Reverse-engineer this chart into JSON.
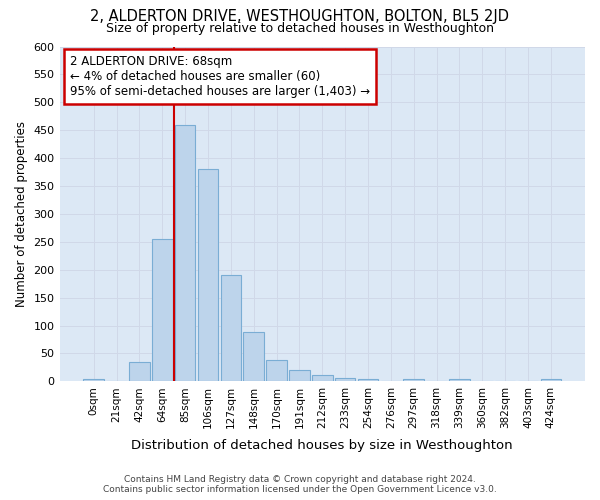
{
  "title": "2, ALDERTON DRIVE, WESTHOUGHTON, BOLTON, BL5 2JD",
  "subtitle": "Size of property relative to detached houses in Westhoughton",
  "xlabel": "Distribution of detached houses by size in Westhoughton",
  "ylabel": "Number of detached properties",
  "bar_labels": [
    "0sqm",
    "21sqm",
    "42sqm",
    "64sqm",
    "85sqm",
    "106sqm",
    "127sqm",
    "148sqm",
    "170sqm",
    "191sqm",
    "212sqm",
    "233sqm",
    "254sqm",
    "276sqm",
    "297sqm",
    "318sqm",
    "339sqm",
    "360sqm",
    "382sqm",
    "403sqm",
    "424sqm"
  ],
  "bar_values": [
    5,
    0,
    35,
    255,
    460,
    380,
    190,
    88,
    38,
    20,
    11,
    6,
    5,
    0,
    5,
    0,
    5,
    0,
    0,
    0,
    5
  ],
  "bar_color": "#bdd4eb",
  "bar_edge_color": "#7aadd4",
  "annotation_text_line1": "2 ALDERTON DRIVE: 68sqm",
  "annotation_text_line2": "← 4% of detached houses are smaller (60)",
  "annotation_text_line3": "95% of semi-detached houses are larger (1,403) →",
  "annotation_box_facecolor": "#ffffff",
  "annotation_box_edgecolor": "#cc0000",
  "vline_color": "#cc0000",
  "grid_color": "#d0d8e8",
  "background_color": "#dce8f5",
  "footer_line1": "Contains HM Land Registry data © Crown copyright and database right 2024.",
  "footer_line2": "Contains public sector information licensed under the Open Government Licence v3.0.",
  "ylim": [
    0,
    600
  ],
  "yticks": [
    0,
    50,
    100,
    150,
    200,
    250,
    300,
    350,
    400,
    450,
    500,
    550,
    600
  ],
  "vline_xindex": 3.5
}
